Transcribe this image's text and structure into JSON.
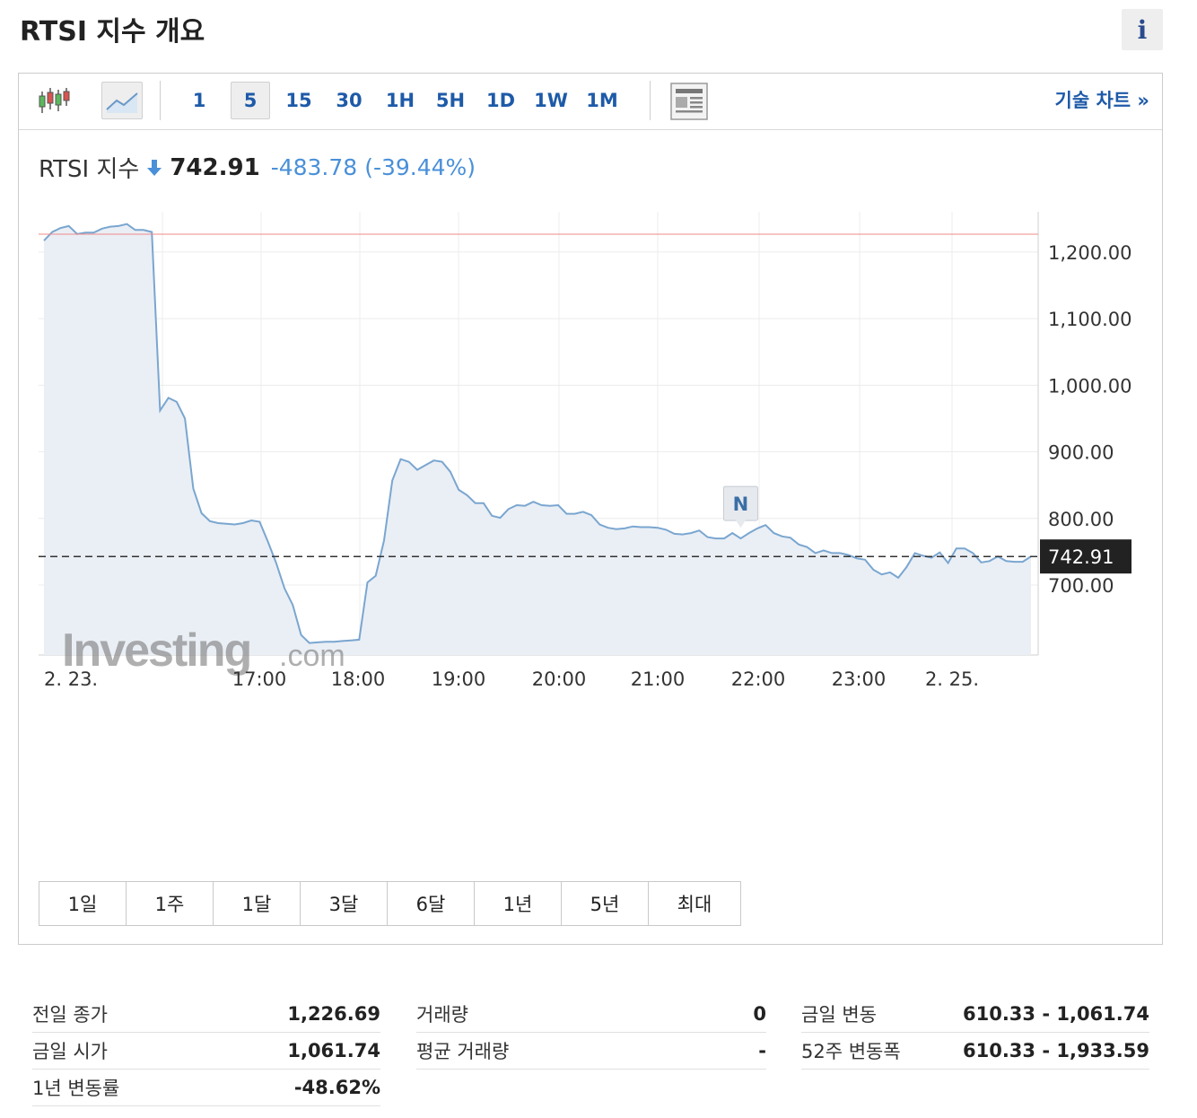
{
  "page": {
    "title": "RTSI 지수 개요",
    "info_label": "i"
  },
  "toolbar": {
    "timeframes": [
      "1",
      "5",
      "15",
      "30",
      "1H",
      "5H",
      "1D",
      "1W",
      "1M"
    ],
    "active_timeframe": "5",
    "technical_link": "기술 차트 »"
  },
  "quote": {
    "name": "RTSI 지수",
    "price": "742.91",
    "change": "-483.78",
    "change_pct": "(-39.44%)",
    "direction": "down"
  },
  "colors": {
    "accent": "#1e5aa8",
    "line": "#7aa6d0",
    "area": "#eaeff5",
    "prev_close_line": "#f08a8a",
    "down": "#4a90d9"
  },
  "chart_data": {
    "type": "area",
    "y_ticks": [
      "1,200.00",
      "1,100.00",
      "1,000.00",
      "900.00",
      "800.00",
      "700.00"
    ],
    "x_labels": [
      "2. 23.",
      "17:00",
      "18:00",
      "19:00",
      "20:00",
      "21:00",
      "22:00",
      "23:00",
      "2. 25."
    ],
    "ylim": [
      595,
      1255
    ],
    "prev_close": 1226.69,
    "current_label": "742.91",
    "current": 742.91,
    "news_marker": "N",
    "watermark": {
      "main": "Investing",
      "suffix": ".com"
    },
    "grid": true,
    "values": [
      1217,
      1230,
      1236,
      1239,
      1227,
      1229,
      1229,
      1235,
      1238,
      1239,
      1242,
      1233,
      1233,
      1230,
      962,
      981,
      975,
      950,
      845,
      808,
      796,
      793,
      792,
      791,
      793,
      797,
      795,
      765,
      733,
      695,
      670,
      625,
      613,
      614,
      615,
      615,
      616,
      617,
      618,
      704,
      714,
      767,
      857,
      889,
      885,
      873,
      880,
      887,
      885,
      870,
      843,
      835,
      823,
      823,
      804,
      801,
      814,
      820,
      819,
      825,
      820,
      819,
      820,
      807,
      807,
      810,
      805,
      791,
      786,
      784,
      785,
      788,
      787,
      787,
      786,
      783,
      777,
      776,
      778,
      782,
      772,
      770,
      770,
      778,
      770,
      778,
      785,
      790,
      778,
      773,
      771,
      761,
      757,
      748,
      752,
      748,
      748,
      745,
      740,
      738,
      723,
      716,
      719,
      711,
      727,
      748,
      744,
      741,
      749,
      733,
      755,
      755,
      748,
      734,
      736,
      743,
      736,
      735,
      735,
      743
    ]
  },
  "ranges": [
    "1일",
    "1주",
    "1달",
    "3달",
    "6달",
    "1년",
    "5년",
    "최대"
  ],
  "stats": {
    "col1": [
      {
        "label": "전일 종가",
        "value": "1,226.69"
      },
      {
        "label": "금일 시가",
        "value": "1,061.74"
      },
      {
        "label": "1년 변동률",
        "value": "-48.62%"
      }
    ],
    "col2": [
      {
        "label": "거래량",
        "value": "0"
      },
      {
        "label": "평균 거래량",
        "value": "-"
      }
    ],
    "col3": [
      {
        "label": "금일 변동",
        "value": "610.33 - 1,061.74"
      },
      {
        "label": "52주 변동폭",
        "value": "610.33 - 1,933.59"
      }
    ]
  }
}
